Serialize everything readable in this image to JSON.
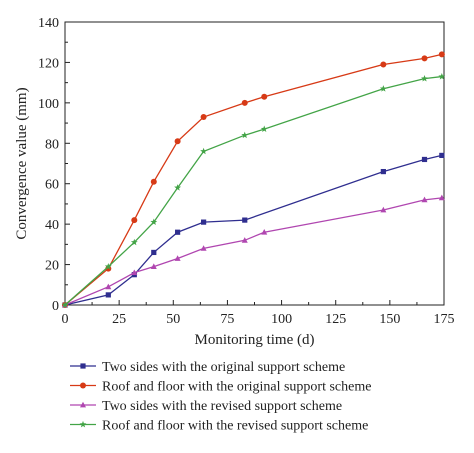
{
  "chart_data": {
    "type": "line",
    "title": "",
    "xlabel": "Monitoring time (d)",
    "ylabel": "Convergence value (mm)",
    "xlim": [
      0,
      175
    ],
    "ylim": [
      0,
      140
    ],
    "xticks": [
      0,
      25,
      50,
      75,
      100,
      125,
      150,
      175
    ],
    "yticks": [
      0,
      20,
      40,
      60,
      80,
      100,
      120,
      140
    ],
    "xtick_labels": [
      "0",
      "25",
      "50",
      "75",
      "100",
      "125",
      "150",
      "175"
    ],
    "ytick_labels": [
      "0",
      "20",
      "40",
      "60",
      "80",
      "100",
      "120",
      "140"
    ],
    "grid": false,
    "legend_position": "bottom",
    "series": [
      {
        "name": "Two sides with the original support scheme",
        "color": "#2f2e8f",
        "marker": "square",
        "x": [
          0,
          20,
          32,
          41,
          52,
          64,
          83,
          147,
          166,
          174
        ],
        "y": [
          0,
          5,
          15,
          26,
          36,
          41,
          42,
          66,
          72,
          74
        ]
      },
      {
        "name": "Roof and floor with the original support scheme",
        "color": "#d73a16",
        "marker": "circle",
        "x": [
          0,
          20,
          32,
          41,
          52,
          64,
          83,
          92,
          147,
          166,
          174
        ],
        "y": [
          0,
          18,
          42,
          61,
          81,
          93,
          100,
          103,
          119,
          122,
          124
        ]
      },
      {
        "name": "Two sides with the revised support scheme",
        "color": "#b046b0",
        "marker": "triangle",
        "x": [
          0,
          20,
          32,
          41,
          52,
          64,
          83,
          92,
          147,
          166,
          174
        ],
        "y": [
          0,
          9,
          16,
          19,
          23,
          28,
          32,
          36,
          47,
          52,
          53
        ]
      },
      {
        "name": "Roof and floor with the revised support scheme",
        "color": "#43a447",
        "marker": "star",
        "x": [
          0,
          20,
          32,
          41,
          52,
          64,
          83,
          92,
          147,
          166,
          174
        ],
        "y": [
          0,
          19,
          31,
          41,
          58,
          76,
          84,
          87,
          107,
          112,
          113
        ]
      }
    ]
  }
}
